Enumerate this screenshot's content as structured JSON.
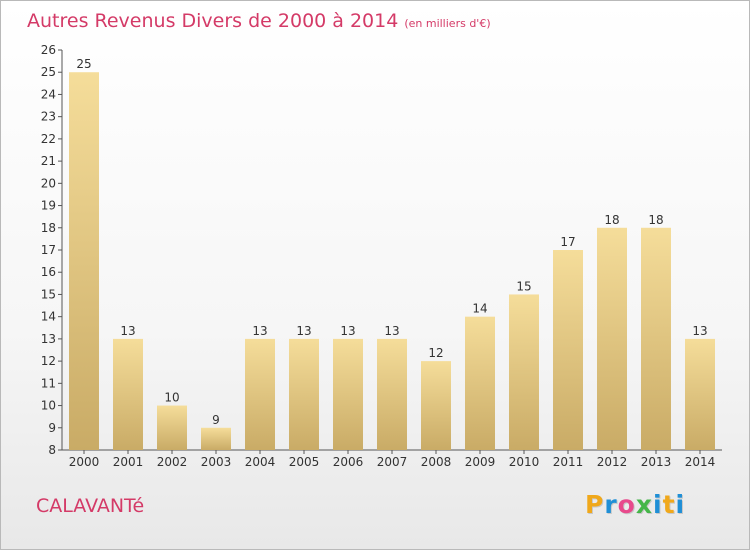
{
  "title": "Autres Revenus Divers de 2000 à 2014",
  "title_unit": "(en milliers d'€)",
  "commune": "CALAVANTé",
  "brand": {
    "letters": [
      "P",
      "r",
      "o",
      "x",
      "i",
      "t",
      "i"
    ],
    "colors": [
      "#f0a81b",
      "#1f8fd6",
      "#e84a8c",
      "#45b649",
      "#1f8fd6",
      "#f0a81b",
      "#1f8fd6"
    ]
  },
  "colors": {
    "bar_light": "#f5dd9a",
    "bar_dark": "#c9ab66",
    "text_accent": "#d43a67"
  },
  "chart_data": {
    "type": "bar",
    "categories": [
      "2000",
      "2001",
      "2002",
      "2003",
      "2004",
      "2005",
      "2006",
      "2007",
      "2008",
      "2009",
      "2010",
      "2011",
      "2012",
      "2013",
      "2014"
    ],
    "values": [
      25,
      13,
      10,
      9,
      13,
      13,
      13,
      13,
      12,
      14,
      15,
      17,
      18,
      18,
      13
    ],
    "ylim": [
      8,
      26
    ],
    "yticks": [
      8,
      9,
      10,
      11,
      12,
      13,
      14,
      15,
      16,
      17,
      18,
      19,
      20,
      21,
      22,
      23,
      24,
      25,
      26
    ],
    "grid": false,
    "data_labels": true
  }
}
